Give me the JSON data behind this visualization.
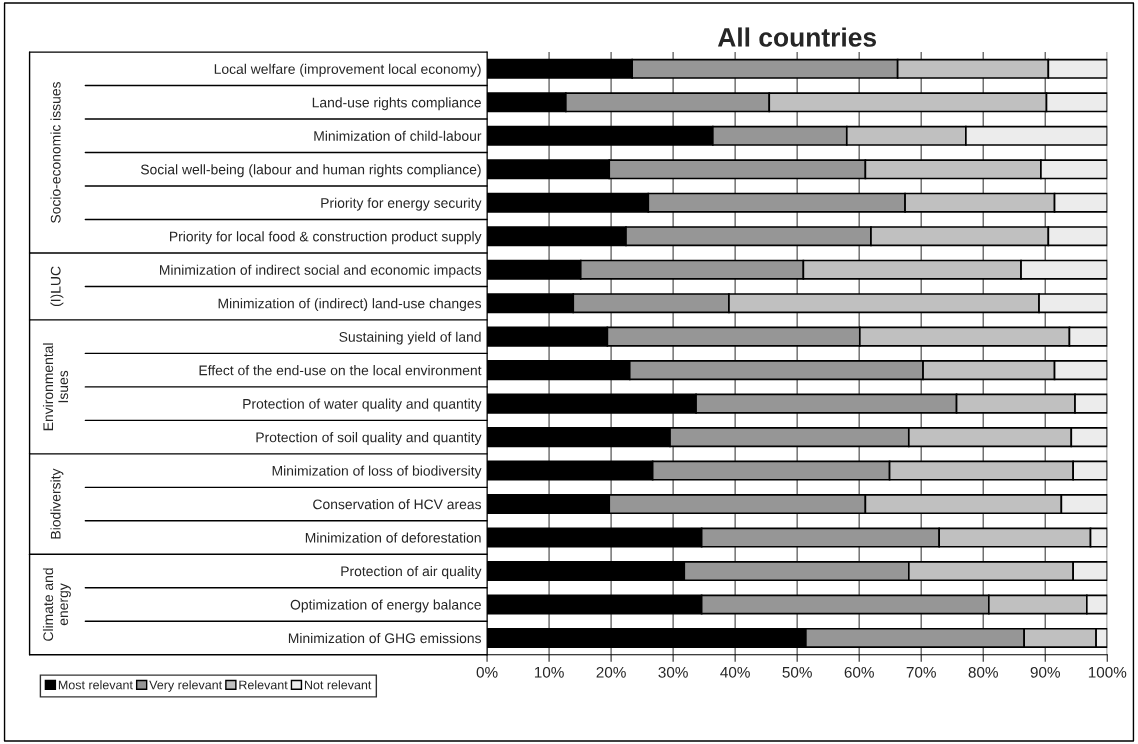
{
  "chart_data": {
    "type": "bar",
    "orientation": "horizontal",
    "stacked": true,
    "title": "All countries",
    "categories": [
      "Local welfare (improvement local economy)",
      "Land-use rights compliance",
      "Minimization of child-labour",
      "Social well-being (labour and human rights compliance)",
      "Priority for energy security",
      "Priority for local food & construction product supply",
      "Minimization of indirect social and economic impacts",
      "Minimization of (indirect) land-use changes",
      "Sustaining yield of land",
      "Effect of the end-use on the local environment",
      "Protection of water quality and quantity",
      "Protection of soil quality and quantity",
      "Minimization of loss of biodiversity",
      "Conservation of HCV areas",
      "Minimization of deforestation",
      "Protection of air quality",
      "Optimization of energy balance",
      "Minimization of GHG emissions"
    ],
    "series": [
      {
        "name": "Most relevant",
        "color": "#000000",
        "values": [
          23.4,
          12.7,
          36.4,
          19.7,
          26.0,
          22.4,
          15.1,
          13.9,
          19.4,
          23.0,
          33.7,
          29.5,
          26.7,
          19.7,
          34.6,
          31.8,
          34.6,
          51.4
        ]
      },
      {
        "name": "Very relevant",
        "color": "#969696",
        "values": [
          42.8,
          32.8,
          21.6,
          41.3,
          41.4,
          39.5,
          35.9,
          25.1,
          40.7,
          47.3,
          42.0,
          38.5,
          38.2,
          41.3,
          38.3,
          36.2,
          46.3,
          35.2
        ]
      },
      {
        "name": "Relevant",
        "color": "#c0c0c0",
        "values": [
          24.3,
          44.7,
          19.2,
          28.3,
          24.1,
          28.6,
          35.1,
          50.0,
          33.8,
          21.2,
          19.1,
          26.2,
          29.6,
          31.6,
          24.4,
          26.5,
          15.8,
          11.6
        ]
      },
      {
        "name": "Not relevant",
        "color": "#ececec",
        "values": [
          9.5,
          9.8,
          22.8,
          10.7,
          8.5,
          9.5,
          13.9,
          11.0,
          6.1,
          8.5,
          5.2,
          5.8,
          5.5,
          7.4,
          2.7,
          5.5,
          3.3,
          1.8
        ]
      }
    ],
    "xlim": [
      0,
      100
    ],
    "xticks": [
      {
        "value": 0,
        "label": "0%"
      },
      {
        "value": 10,
        "label": "10%"
      },
      {
        "value": 20,
        "label": "20%"
      },
      {
        "value": 30,
        "label": "30%"
      },
      {
        "value": 40,
        "label": "40%"
      },
      {
        "value": 50,
        "label": "50%"
      },
      {
        "value": 60,
        "label": "60%"
      },
      {
        "value": 70,
        "label": "70%"
      },
      {
        "value": 80,
        "label": "80%"
      },
      {
        "value": 90,
        "label": "90%"
      },
      {
        "value": 100,
        "label": "100%"
      }
    ],
    "grid": "x",
    "legend": "bottom left",
    "annotations": [
      "Socio-economic issues",
      "(I)LUC",
      "Environmental\nIsues",
      "Biodiversity",
      "Climate and\nenergy"
    ]
  }
}
